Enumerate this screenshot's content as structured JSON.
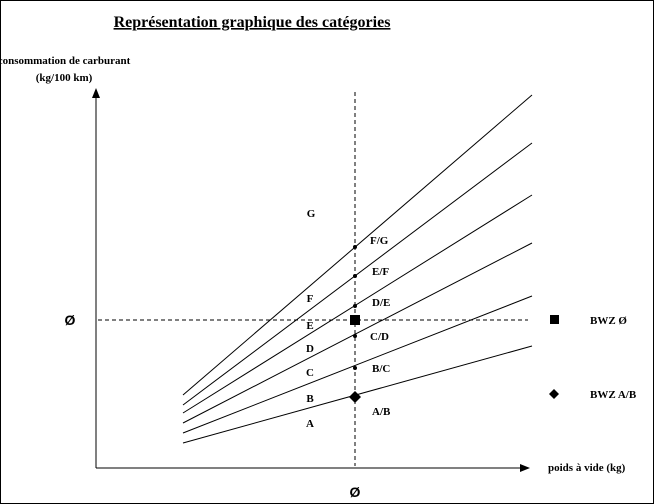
{
  "title": "Représentation graphique des catégories",
  "y_axis_label_line1": "consommation de carburant",
  "y_axis_label_line2": "(kg/100 km)",
  "x_axis_label": "poids à vide  (kg)",
  "x_avg_symbol": "Ø",
  "y_avg_symbol": "Ø",
  "region_labels": [
    "G",
    "F",
    "E",
    "D",
    "C",
    "B",
    "A"
  ],
  "boundary_labels": [
    "F/G",
    "E/F",
    "D/E",
    "C/D",
    "B/C",
    "A/B"
  ],
  "legend": {
    "square_label": "BWZ Ø",
    "diamond_label": "BWZ A/B"
  },
  "colors": {
    "lines": "#000000",
    "background": "#ffffff"
  },
  "icons": {
    "square_marker": "filled-square",
    "diamond_marker": "filled-diamond",
    "boundary_point": "small-dot"
  }
}
